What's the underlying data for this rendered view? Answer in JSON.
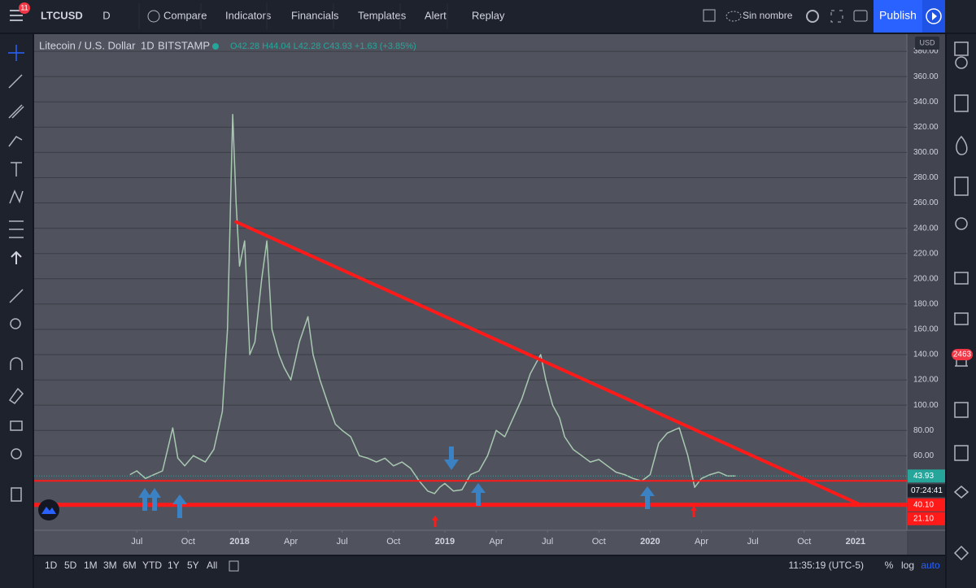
{
  "toolbar": {
    "badge": "11",
    "symbol": "LTCUSD",
    "interval": "D",
    "items": [
      "Compare",
      "Indicators",
      "Financials",
      "Templates",
      "Alert",
      "Replay"
    ],
    "layout_name": "Sin nombre",
    "publish": "Publish"
  },
  "legend": {
    "title": "Litecoin / U.S. Dollar",
    "interval": "1D",
    "exchange": "BITSTAMP",
    "ohlc": "O42.28 H44.04 L42.28 C43.93 +1.63 (+3.85%)"
  },
  "chart_data": {
    "type": "line",
    "currency": "USD",
    "x": [
      -6.4,
      -6,
      -5.5,
      -5,
      -4.5,
      -3.9,
      -3.6,
      -3.2,
      -2.7,
      -2,
      -1.5,
      -1,
      -0.7,
      -0.4,
      -0.2,
      0,
      0.3,
      0.6,
      0.9,
      1.3,
      1.6,
      1.9,
      2.3,
      2.6,
      3,
      3.5,
      4,
      4.3,
      4.7,
      5.2,
      5.6,
      6,
      6.5,
      7,
      7.5,
      8,
      8.5,
      9,
      9.5,
      10,
      10.5,
      11,
      11.4,
      11.7,
      12,
      12.5,
      13,
      13.5,
      14,
      14.5,
      15,
      15.5,
      16,
      16.5,
      17,
      17.6,
      17.9,
      18.3,
      18.7,
      19,
      19.5,
      20,
      20.5,
      21,
      21.5,
      22,
      22.5,
      23,
      23.5,
      24,
      24.5,
      25,
      25.7,
      26.2,
      26.6,
      27,
      27.5,
      28,
      28.5,
      29
    ],
    "values": [
      45,
      48,
      42,
      45,
      48,
      82,
      58,
      52,
      60,
      55,
      65,
      95,
      160,
      330,
      260,
      210,
      230,
      140,
      150,
      200,
      230,
      160,
      140,
      130,
      120,
      150,
      170,
      140,
      120,
      100,
      85,
      80,
      75,
      60,
      58,
      55,
      58,
      52,
      55,
      50,
      40,
      32,
      30,
      35,
      38,
      32,
      33,
      45,
      48,
      60,
      80,
      75,
      90,
      105,
      125,
      140,
      120,
      100,
      90,
      75,
      65,
      60,
      55,
      57,
      52,
      47,
      45,
      42,
      40,
      45,
      70,
      78,
      82,
      60,
      35,
      42,
      45,
      47,
      44,
      43.93
    ],
    "color": "#a8c8b0",
    "xlim": [
      -12,
      39
    ],
    "xticks": [
      {
        "value": -6,
        "label": "Jul"
      },
      {
        "value": -3,
        "label": "Oct"
      },
      {
        "value": 0,
        "label": "2018"
      },
      {
        "value": 3,
        "label": "Apr"
      },
      {
        "value": 6,
        "label": "Jul"
      },
      {
        "value": 9,
        "label": "Oct"
      },
      {
        "value": 12,
        "label": "2019"
      },
      {
        "value": 15,
        "label": "Apr"
      },
      {
        "value": 18,
        "label": "Jul"
      },
      {
        "value": 21,
        "label": "Oct"
      },
      {
        "value": 24,
        "label": "2020"
      },
      {
        "value": 27,
        "label": "Apr"
      },
      {
        "value": 30,
        "label": "Jul"
      },
      {
        "value": 33,
        "label": "Oct"
      },
      {
        "value": 36,
        "label": "2021"
      }
    ],
    "ylim": [
      1,
      391
    ],
    "yticks": [
      {
        "value": 60,
        "label": "60.00"
      },
      {
        "value": 80,
        "label": "80.00"
      },
      {
        "value": 100,
        "label": "100.00"
      },
      {
        "value": 120,
        "label": "120.00"
      },
      {
        "value": 140,
        "label": "140.00"
      },
      {
        "value": 160,
        "label": "160.00"
      },
      {
        "value": 180,
        "label": "180.00"
      },
      {
        "value": 200,
        "label": "200.00"
      },
      {
        "value": 220,
        "label": "220.00"
      },
      {
        "value": 240,
        "label": "240.00"
      },
      {
        "value": 260,
        "label": "260.00"
      },
      {
        "value": 280,
        "label": "280.00"
      },
      {
        "value": 300,
        "label": "300.00"
      },
      {
        "value": 320,
        "label": "320.00"
      },
      {
        "value": 340,
        "label": "340.00"
      },
      {
        "value": 360,
        "label": "360.00"
      },
      {
        "value": 380,
        "label": "380.00"
      }
    ],
    "grid": true,
    "last_price": 43.93,
    "last_price_color": "#26a69a",
    "countdown": "07:24:41",
    "levels": [
      {
        "value": 40.1,
        "label": "40.10",
        "color": "#ff1a1a",
        "width": 2
      },
      {
        "value": 21.1,
        "label": "21.10",
        "color": "#ff1a1a",
        "width": 5
      }
    ],
    "trendline": {
      "x": [
        -0.2,
        36.3
      ],
      "y": [
        245,
        21.1
      ],
      "color": "#ff1a1a"
    }
  },
  "bottom_bar": {
    "ranges": [
      "1D",
      "5D",
      "1M",
      "3M",
      "6M",
      "YTD",
      "1Y",
      "5Y",
      "All"
    ],
    "time": "11:35:19 (UTC-5)",
    "percent": "%",
    "log": "log",
    "auto": "auto"
  },
  "sidebar": {
    "badge": "2463"
  }
}
